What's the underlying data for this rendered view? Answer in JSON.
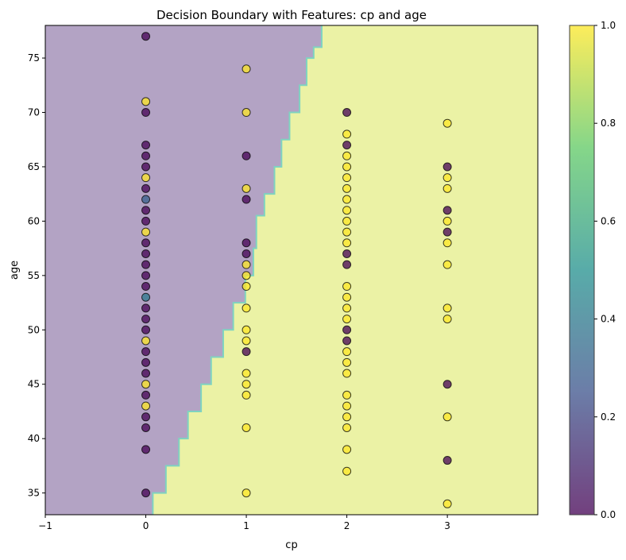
{
  "chart_data": {
    "type": "scatter",
    "title": "Decision Boundary with Features: cp and age",
    "xlabel": "cp",
    "ylabel": "age",
    "xlim": [
      -1,
      3.9
    ],
    "ylim": [
      33,
      78
    ],
    "xticks": [
      -1,
      0,
      1,
      2,
      3
    ],
    "yticks": [
      35,
      40,
      45,
      50,
      55,
      60,
      65,
      70,
      75
    ],
    "region_colors": {
      "class_0": "#b3a3c4",
      "class_1": "#ebf2a5"
    },
    "boundary": [
      [
        0.07,
        33
      ],
      [
        0.07,
        35
      ],
      [
        0.2,
        35
      ],
      [
        0.2,
        37.5
      ],
      [
        0.33,
        37.5
      ],
      [
        0.33,
        40
      ],
      [
        0.42,
        40
      ],
      [
        0.42,
        42.5
      ],
      [
        0.55,
        42.5
      ],
      [
        0.55,
        45
      ],
      [
        0.65,
        45
      ],
      [
        0.65,
        47.5
      ],
      [
        0.77,
        47.5
      ],
      [
        0.77,
        50
      ],
      [
        0.87,
        50
      ],
      [
        0.87,
        52.5
      ],
      [
        0.99,
        52.5
      ],
      [
        0.99,
        55
      ],
      [
        1.07,
        55
      ],
      [
        1.07,
        57.5
      ],
      [
        1.1,
        57.5
      ],
      [
        1.1,
        60.5
      ],
      [
        1.18,
        60.5
      ],
      [
        1.18,
        62.5
      ],
      [
        1.28,
        62.5
      ],
      [
        1.28,
        65
      ],
      [
        1.35,
        65
      ],
      [
        1.35,
        67.5
      ],
      [
        1.43,
        67.5
      ],
      [
        1.43,
        70
      ],
      [
        1.53,
        70
      ],
      [
        1.53,
        72.5
      ],
      [
        1.6,
        72.5
      ],
      [
        1.6,
        75
      ],
      [
        1.67,
        75
      ],
      [
        1.67,
        76
      ],
      [
        1.75,
        76
      ],
      [
        1.75,
        78
      ]
    ],
    "colorbar": {
      "min": 0.0,
      "max": 1.0,
      "ticks": [
        "0.0",
        "0.2",
        "0.4",
        "0.6",
        "0.8",
        "1.0"
      ]
    },
    "points": [
      {
        "x": 0,
        "y": 77,
        "c": 0
      },
      {
        "x": 0,
        "y": 71,
        "c": 1
      },
      {
        "x": 0,
        "y": 70,
        "c": 0
      },
      {
        "x": 0,
        "y": 67,
        "c": 0
      },
      {
        "x": 0,
        "y": 66,
        "c": 0
      },
      {
        "x": 0,
        "y": 65,
        "c": 0
      },
      {
        "x": 0,
        "y": 64,
        "c": 1
      },
      {
        "x": 0,
        "y": 63,
        "c": 0
      },
      {
        "x": 0,
        "y": 62,
        "c": 0.3
      },
      {
        "x": 0,
        "y": 61,
        "c": 0
      },
      {
        "x": 0,
        "y": 60,
        "c": 0
      },
      {
        "x": 0,
        "y": 59,
        "c": 1
      },
      {
        "x": 0,
        "y": 58,
        "c": 0
      },
      {
        "x": 0,
        "y": 57,
        "c": 0
      },
      {
        "x": 0,
        "y": 56,
        "c": 0
      },
      {
        "x": 0,
        "y": 55,
        "c": 0
      },
      {
        "x": 0,
        "y": 54,
        "c": 0
      },
      {
        "x": 0,
        "y": 53,
        "c": 0.4
      },
      {
        "x": 0,
        "y": 52,
        "c": 0
      },
      {
        "x": 0,
        "y": 51,
        "c": 0
      },
      {
        "x": 0,
        "y": 50,
        "c": 0
      },
      {
        "x": 0,
        "y": 49,
        "c": 1
      },
      {
        "x": 0,
        "y": 48,
        "c": 0
      },
      {
        "x": 0,
        "y": 47,
        "c": 0
      },
      {
        "x": 0,
        "y": 46,
        "c": 0
      },
      {
        "x": 0,
        "y": 45,
        "c": 1
      },
      {
        "x": 0,
        "y": 44,
        "c": 0
      },
      {
        "x": 0,
        "y": 43,
        "c": 1
      },
      {
        "x": 0,
        "y": 42,
        "c": 0
      },
      {
        "x": 0,
        "y": 41,
        "c": 0
      },
      {
        "x": 0,
        "y": 39,
        "c": 0
      },
      {
        "x": 0,
        "y": 35,
        "c": 0
      },
      {
        "x": 1,
        "y": 74,
        "c": 1
      },
      {
        "x": 1,
        "y": 70,
        "c": 1
      },
      {
        "x": 1,
        "y": 66,
        "c": 0
      },
      {
        "x": 1,
        "y": 63,
        "c": 1
      },
      {
        "x": 1,
        "y": 62,
        "c": 0
      },
      {
        "x": 1,
        "y": 58,
        "c": 0
      },
      {
        "x": 1,
        "y": 57,
        "c": 0
      },
      {
        "x": 1,
        "y": 56,
        "c": 1
      },
      {
        "x": 1,
        "y": 55,
        "c": 1
      },
      {
        "x": 1,
        "y": 54,
        "c": 1
      },
      {
        "x": 1,
        "y": 52,
        "c": 1
      },
      {
        "x": 1,
        "y": 50,
        "c": 1
      },
      {
        "x": 1,
        "y": 49,
        "c": 1
      },
      {
        "x": 1,
        "y": 48,
        "c": 0
      },
      {
        "x": 1,
        "y": 46,
        "c": 1
      },
      {
        "x": 1,
        "y": 45,
        "c": 1
      },
      {
        "x": 1,
        "y": 44,
        "c": 1
      },
      {
        "x": 1,
        "y": 41,
        "c": 1
      },
      {
        "x": 1,
        "y": 35,
        "c": 1
      },
      {
        "x": 2,
        "y": 70,
        "c": 0
      },
      {
        "x": 2,
        "y": 68,
        "c": 1
      },
      {
        "x": 2,
        "y": 67,
        "c": 0
      },
      {
        "x": 2,
        "y": 66,
        "c": 1
      },
      {
        "x": 2,
        "y": 65,
        "c": 1
      },
      {
        "x": 2,
        "y": 64,
        "c": 1
      },
      {
        "x": 2,
        "y": 63,
        "c": 1
      },
      {
        "x": 2,
        "y": 62,
        "c": 1
      },
      {
        "x": 2,
        "y": 61,
        "c": 1
      },
      {
        "x": 2,
        "y": 60,
        "c": 1
      },
      {
        "x": 2,
        "y": 59,
        "c": 1
      },
      {
        "x": 2,
        "y": 58,
        "c": 1
      },
      {
        "x": 2,
        "y": 57,
        "c": 0
      },
      {
        "x": 2,
        "y": 56,
        "c": 0
      },
      {
        "x": 2,
        "y": 54,
        "c": 1
      },
      {
        "x": 2,
        "y": 53,
        "c": 1
      },
      {
        "x": 2,
        "y": 52,
        "c": 1
      },
      {
        "x": 2,
        "y": 51,
        "c": 1
      },
      {
        "x": 2,
        "y": 50,
        "c": 0
      },
      {
        "x": 2,
        "y": 49,
        "c": 0
      },
      {
        "x": 2,
        "y": 48,
        "c": 1
      },
      {
        "x": 2,
        "y": 47,
        "c": 1
      },
      {
        "x": 2,
        "y": 46,
        "c": 1
      },
      {
        "x": 2,
        "y": 44,
        "c": 1
      },
      {
        "x": 2,
        "y": 43,
        "c": 1
      },
      {
        "x": 2,
        "y": 42,
        "c": 1
      },
      {
        "x": 2,
        "y": 41,
        "c": 1
      },
      {
        "x": 2,
        "y": 39,
        "c": 1
      },
      {
        "x": 2,
        "y": 37,
        "c": 1
      },
      {
        "x": 3,
        "y": 69,
        "c": 1
      },
      {
        "x": 3,
        "y": 65,
        "c": 0
      },
      {
        "x": 3,
        "y": 64,
        "c": 1
      },
      {
        "x": 3,
        "y": 63,
        "c": 1
      },
      {
        "x": 3,
        "y": 61,
        "c": 0
      },
      {
        "x": 3,
        "y": 60,
        "c": 1
      },
      {
        "x": 3,
        "y": 59,
        "c": 0
      },
      {
        "x": 3,
        "y": 58,
        "c": 1
      },
      {
        "x": 3,
        "y": 56,
        "c": 1
      },
      {
        "x": 3,
        "y": 52,
        "c": 1
      },
      {
        "x": 3,
        "y": 51,
        "c": 1
      },
      {
        "x": 3,
        "y": 45,
        "c": 0
      },
      {
        "x": 3,
        "y": 42,
        "c": 1
      },
      {
        "x": 3,
        "y": 38,
        "c": 0
      },
      {
        "x": 3,
        "y": 34,
        "c": 1
      }
    ]
  }
}
